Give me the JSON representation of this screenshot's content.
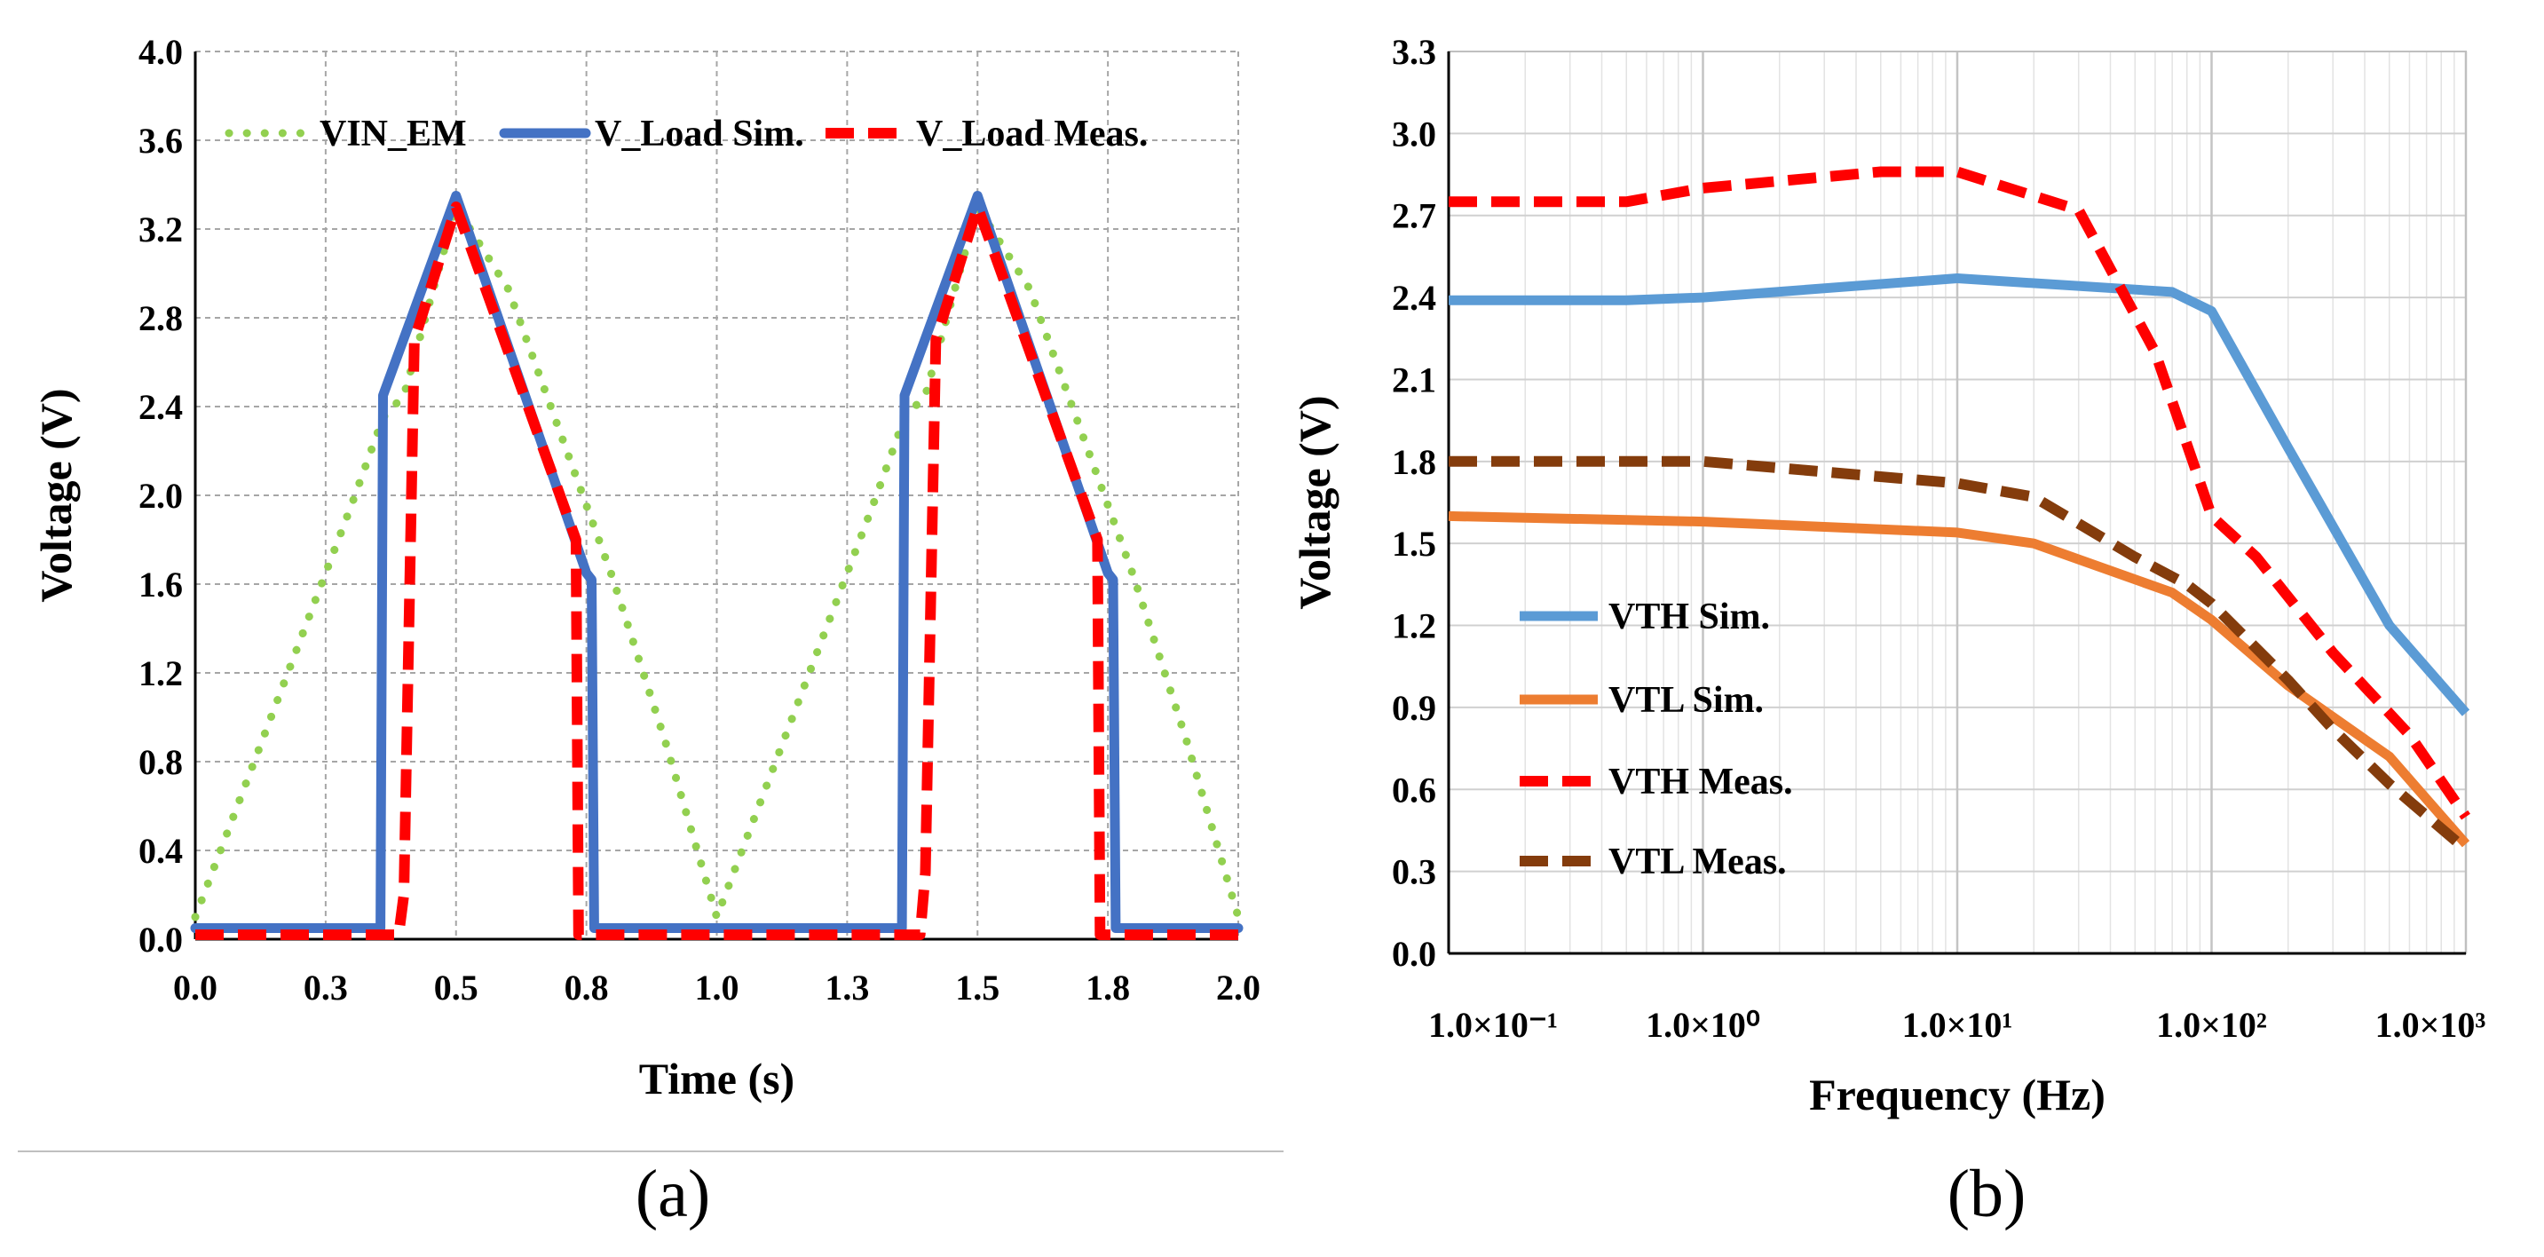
{
  "chart_data": [
    {
      "type": "line",
      "panel_label": "(a)",
      "xlabel": "Time (s)",
      "ylabel": "Voltage (V)",
      "xlim": [
        0,
        2
      ],
      "ylim": [
        0,
        4
      ],
      "x_ticks": [
        "0.0",
        "0.3",
        "0.5",
        "0.8",
        "1.0",
        "1.3",
        "1.5",
        "1.8",
        "2.0"
      ],
      "x_tick_values": [
        0,
        0.25,
        0.5,
        0.75,
        1.0,
        1.25,
        1.5,
        1.75,
        2.0
      ],
      "y_ticks": [
        "0.0",
        "0.4",
        "0.8",
        "1.2",
        "1.6",
        "2.0",
        "2.4",
        "2.8",
        "3.2",
        "3.6",
        "4.0"
      ],
      "y_tick_values": [
        0,
        0.4,
        0.8,
        1.2,
        1.6,
        2.0,
        2.4,
        2.8,
        3.2,
        3.6,
        4.0
      ],
      "grid": true,
      "legend": "top",
      "series": [
        {
          "name": "VIN_EM",
          "color": "#92D050",
          "style": "dotted",
          "x": [
            0.0,
            0.1,
            0.2,
            0.3,
            0.36,
            0.4,
            0.5,
            0.6,
            0.7,
            0.8,
            0.9,
            1.0,
            1.1,
            1.2,
            1.3,
            1.36,
            1.4,
            1.5,
            1.6,
            1.7,
            1.8,
            1.9,
            2.0
          ],
          "y": [
            0.1,
            0.72,
            1.34,
            1.96,
            2.35,
            2.45,
            3.3,
            2.93,
            2.28,
            1.63,
            0.9,
            0.1,
            0.72,
            1.34,
            1.96,
            2.35,
            2.45,
            3.3,
            2.93,
            2.28,
            1.63,
            0.9,
            0.1
          ]
        },
        {
          "name": "V_Load Sim.",
          "color": "#4472C4",
          "style": "solid",
          "x": [
            0.0,
            0.355,
            0.36,
            0.5,
            0.75,
            0.76,
            0.765,
            1.355,
            1.36,
            1.5,
            1.75,
            1.76,
            1.765,
            2.0
          ],
          "y": [
            0.05,
            0.05,
            2.45,
            3.35,
            1.65,
            1.62,
            0.05,
            0.05,
            2.45,
            3.35,
            1.65,
            1.62,
            0.05,
            0.05
          ]
        },
        {
          "name": "V_Load Meas.",
          "color": "#FF0000",
          "style": "dashed",
          "x": [
            0.0,
            0.39,
            0.4,
            0.42,
            0.5,
            0.73,
            0.735,
            0.74,
            1.39,
            1.4,
            1.42,
            1.5,
            1.73,
            1.735,
            1.74,
            2.0
          ],
          "y": [
            0.02,
            0.02,
            0.2,
            2.7,
            3.3,
            1.8,
            0.02,
            0.02,
            0.02,
            0.3,
            2.7,
            3.3,
            1.8,
            0.02,
            0.02,
            0.02
          ]
        }
      ]
    },
    {
      "type": "line",
      "panel_label": "(b)",
      "xlabel": "Frequency (Hz)",
      "ylabel": "Voltage (V)",
      "x_scale": "log",
      "xlim": [
        0.1,
        1000
      ],
      "ylim": [
        0,
        3.3
      ],
      "x_ticks": [
        "1.0×10⁻¹",
        "1.0×10⁰",
        "1.0×10¹",
        "1.0×10²",
        "1.0×10³"
      ],
      "x_tick_values": [
        0.1,
        1,
        10,
        100,
        1000
      ],
      "y_ticks": [
        "0.0",
        "0.3",
        "0.6",
        "0.9",
        "1.2",
        "1.5",
        "1.8",
        "2.1",
        "2.4",
        "2.7",
        "3.0",
        "3.3"
      ],
      "y_tick_values": [
        0,
        0.3,
        0.6,
        0.9,
        1.2,
        1.5,
        1.8,
        2.1,
        2.4,
        2.7,
        3.0,
        3.3
      ],
      "grid": true,
      "legend": "bottom-left",
      "series": [
        {
          "name": "VTH Sim.",
          "color": "#5B9BD5",
          "style": "solid",
          "x": [
            0.1,
            0.5,
            1,
            10,
            70,
            100,
            200,
            500,
            1000
          ],
          "y": [
            2.39,
            2.39,
            2.4,
            2.47,
            2.42,
            2.35,
            1.85,
            1.2,
            0.88
          ]
        },
        {
          "name": "VTL Sim.",
          "color": "#ED7D31",
          "style": "solid",
          "x": [
            0.1,
            1,
            10,
            20,
            70,
            100,
            200,
            500,
            1000
          ],
          "y": [
            1.6,
            1.58,
            1.54,
            1.5,
            1.32,
            1.22,
            0.98,
            0.72,
            0.4
          ]
        },
        {
          "name": "VTH Meas.",
          "color": "#FF0000",
          "style": "dashed",
          "x": [
            0.1,
            0.5,
            1,
            5,
            10,
            30,
            60,
            100,
            150,
            300,
            600,
            1000
          ],
          "y": [
            2.75,
            2.75,
            2.8,
            2.86,
            2.86,
            2.72,
            2.2,
            1.6,
            1.45,
            1.1,
            0.8,
            0.5
          ]
        },
        {
          "name": "VTL Meas.",
          "color": "#843C0C",
          "style": "dashed",
          "x": [
            0.1,
            1,
            10,
            20,
            50,
            80,
            100,
            200,
            300,
            500,
            1000
          ],
          "y": [
            1.8,
            1.8,
            1.72,
            1.67,
            1.45,
            1.35,
            1.28,
            1.0,
            0.82,
            0.62,
            0.38
          ]
        }
      ]
    }
  ]
}
